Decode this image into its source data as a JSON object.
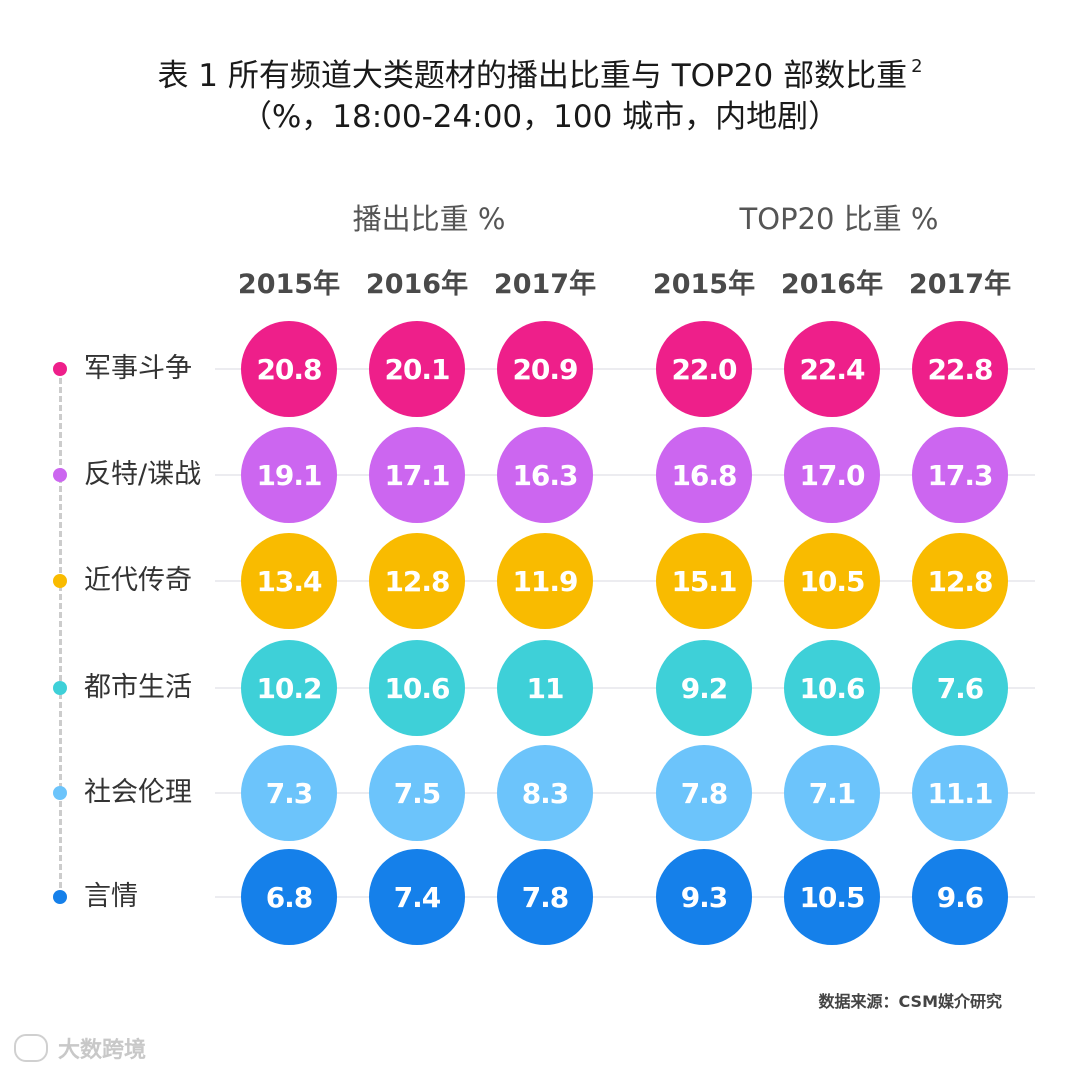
{
  "title_line1": "表 1 所有频道大类题材的播出比重与 TOP20 部数比重",
  "title_sup": "2",
  "title_line2": "（%，18:00-24:00，100 城市，内地剧）",
  "group1_label": "播出比重 %",
  "group2_label": "TOP20 比重 %",
  "source": "数据来源：CSM媒介研究",
  "watermark": "大数跨境",
  "chart_data": {
    "type": "table",
    "columns": [
      {
        "group": "播出比重 %",
        "year": "2015年"
      },
      {
        "group": "播出比重 %",
        "year": "2016年"
      },
      {
        "group": "播出比重 %",
        "year": "2017年"
      },
      {
        "group": "TOP20 比重 %",
        "year": "2015年"
      },
      {
        "group": "TOP20 比重 %",
        "year": "2016年"
      },
      {
        "group": "TOP20 比重 %",
        "year": "2017年"
      }
    ],
    "rows": [
      {
        "label": "军事斗争",
        "color": "#ee1f8a",
        "values": [
          "20.8",
          "20.1",
          "20.9",
          "22.0",
          "22.4",
          "22.8"
        ]
      },
      {
        "label": "反特/谍战",
        "color": "#cc66f0",
        "values": [
          "19.1",
          "17.1",
          "16.3",
          "16.8",
          "17.0",
          "17.3"
        ]
      },
      {
        "label": "近代传奇",
        "color": "#f9bb00",
        "values": [
          "13.4",
          "12.8",
          "11.9",
          "15.1",
          "10.5",
          "12.8"
        ]
      },
      {
        "label": "都市生活",
        "color": "#3ed0d8",
        "values": [
          "10.2",
          "10.6",
          "11",
          "9.2",
          "10.6",
          "7.6"
        ]
      },
      {
        "label": "社会伦理",
        "color": "#6cc4fb",
        "values": [
          "7.3",
          "7.5",
          "8.3",
          "7.8",
          "7.1",
          "11.1"
        ]
      },
      {
        "label": "言情",
        "color": "#1580ea",
        "values": [
          "6.8",
          "7.4",
          "7.8",
          "9.3",
          "10.5",
          "9.6"
        ]
      }
    ]
  }
}
